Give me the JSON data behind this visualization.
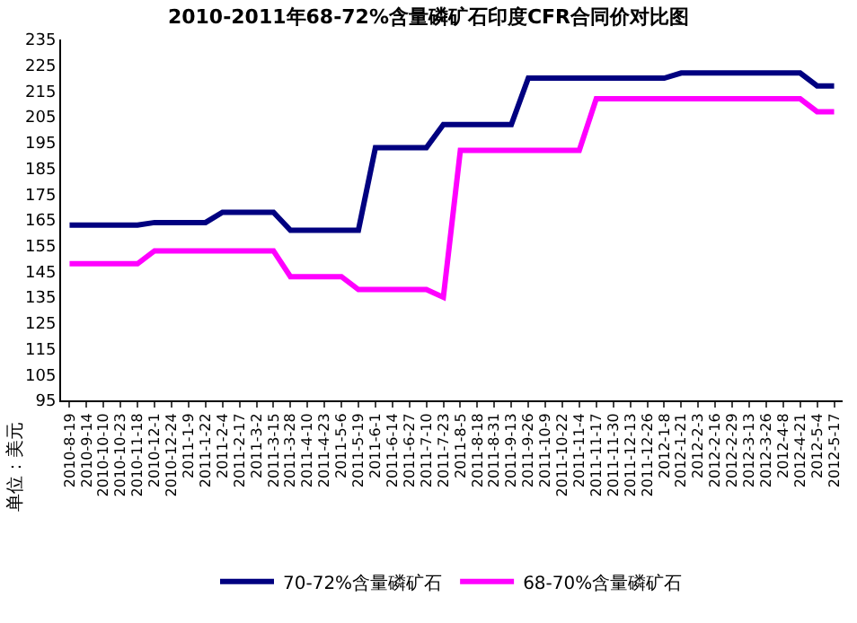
{
  "chart_data": {
    "type": "line",
    "title": "2010-2011年68-72%含量磷矿石印度CFR合同价对比图",
    "annotations": [
      "单位：美元"
    ],
    "categories": [
      "2010-8-19",
      "2010-9-14",
      "2010-10-10",
      "2010-10-23",
      "2010-11-18",
      "2010-12-1",
      "2010-12-24",
      "2011-1-9",
      "2011-1-22",
      "2011-2-4",
      "2011-2-17",
      "2011-3-2",
      "2011-3-15",
      "2011-3-28",
      "2011-4-10",
      "2011-4-23",
      "2011-5-6",
      "2011-5-19",
      "2011-6-1",
      "2011-6-14",
      "2011-6-27",
      "2011-7-10",
      "2011-7-23",
      "2011-8-5",
      "2011-8-18",
      "2011-8-31",
      "2011-9-13",
      "2011-9-26",
      "2011-10-9",
      "2011-10-22",
      "2011-11-4",
      "2011-11-17",
      "2011-11-30",
      "2011-12-13",
      "2011-12-26",
      "2012-1-8",
      "2012-1-21",
      "2012-2-3",
      "2012-2-16",
      "2012-2-29",
      "2012-3-13",
      "2012-3-26",
      "2012-4-8",
      "2012-4-21",
      "2012-5-4",
      "2012-5-17"
    ],
    "series": [
      {
        "name": "70-72%含量磷矿石",
        "color": "#000080",
        "values": [
          163,
          163,
          163,
          163,
          163,
          164,
          164,
          164,
          164,
          168,
          168,
          168,
          168,
          161,
          161,
          161,
          161,
          161,
          193,
          193,
          193,
          193,
          202,
          202,
          202,
          202,
          202,
          220,
          220,
          220,
          220,
          220,
          220,
          220,
          220,
          220,
          222,
          222,
          222,
          222,
          222,
          222,
          222,
          222,
          217,
          217
        ]
      },
      {
        "name": "68-70%含量磷矿石",
        "color": "#ff00ff",
        "values": [
          148,
          148,
          148,
          148,
          148,
          153,
          153,
          153,
          153,
          153,
          153,
          153,
          153,
          143,
          143,
          143,
          143,
          138,
          138,
          138,
          138,
          138,
          135,
          192,
          192,
          192,
          192,
          192,
          192,
          192,
          192,
          212,
          212,
          212,
          212,
          212,
          212,
          212,
          212,
          212,
          212,
          212,
          212,
          212,
          207,
          207
        ]
      }
    ],
    "ylim": [
      95,
      235
    ],
    "yticks": [
      95,
      105,
      115,
      125,
      135,
      145,
      155,
      165,
      175,
      185,
      195,
      205,
      215,
      225,
      235
    ],
    "legend": "bottom",
    "line_style": "solid",
    "marker": "none"
  }
}
